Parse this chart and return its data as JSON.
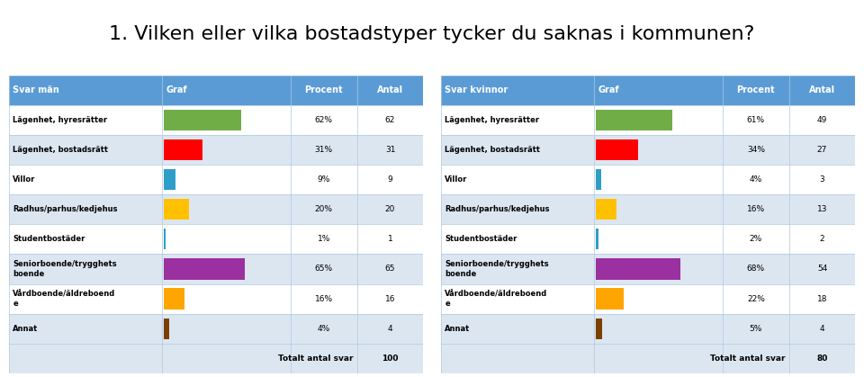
{
  "title": "1. Vilken eller vilka bostadstyper tycker du saknas i kommunen?",
  "title_fontsize": 16,
  "background_color": "#ffffff",
  "header_bg": "#5b9bd5",
  "header_text_color": "#ffffff",
  "row_bg_even": "#dce6f1",
  "row_bg_odd": "#ffffff",
  "footer_bg": "#dce6f1",
  "col_header_left": "Svar män",
  "col_header_graf": "Graf",
  "col_header_procent": "Procent",
  "col_header_antal": "Antal",
  "col_header_left2": "Svar kvinnor",
  "col_header_graf2": "Graf",
  "col_header_procent2": "Procent",
  "col_header_antal2": "Antal",
  "categories": [
    "Lägenhet, hyresrätter",
    "Lägenhet, bostadsrätt",
    "Villor",
    "Radhus/parhus/kedjehus",
    "Studentbostäder",
    "Seniorboende/trygghets\nboende",
    "Vårdboende/äldreboend\ne",
    "Annat"
  ],
  "men_pct": [
    62,
    31,
    9,
    20,
    1,
    65,
    16,
    4
  ],
  "men_antal": [
    62,
    31,
    9,
    20,
    1,
    65,
    16,
    4
  ],
  "women_pct": [
    61,
    34,
    4,
    16,
    2,
    68,
    22,
    5
  ],
  "women_antal": [
    49,
    27,
    3,
    13,
    2,
    54,
    18,
    4
  ],
  "bar_colors": [
    "#70ad47",
    "#ff0000",
    "#2e9ec8",
    "#ffc000",
    "#2e9ec8",
    "#9b30a0",
    "#ffa500",
    "#7b3f00"
  ],
  "max_bar_pct": 100,
  "totalt_men": 100,
  "totalt_women": 80,
  "totalt_label": "Totalt antal svar",
  "grid_line_color": "#aec8e0",
  "c0": 0.0,
  "c1": 0.37,
  "c2": 0.68,
  "c3": 0.84,
  "c4": 1.0
}
